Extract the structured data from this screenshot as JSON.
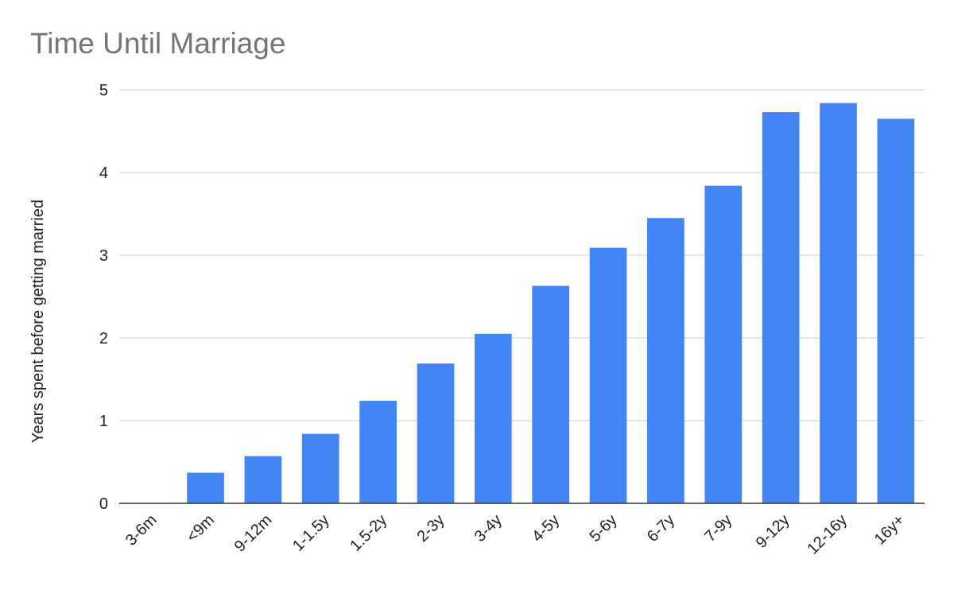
{
  "chart_data": {
    "type": "bar",
    "title": "Time Until Marriage",
    "xlabel": "",
    "ylabel": "Years spent before getting married",
    "ylim": [
      0,
      5
    ],
    "yticks": [
      0,
      1,
      2,
      3,
      4,
      5
    ],
    "grid": true,
    "legend": "none",
    "bar_color": "#4285f4",
    "categories": [
      "3-6m",
      "<9m",
      "9-12m",
      "1-1.5y",
      "1.5-2y",
      "2-3y",
      "3-4y",
      "4-5y",
      "5-6y",
      "6-7y",
      "7-9y",
      "9-12y",
      "12-16y",
      "16y+"
    ],
    "values": [
      0,
      0.37,
      0.57,
      0.84,
      1.24,
      1.69,
      2.05,
      2.63,
      3.09,
      3.45,
      3.84,
      4.73,
      4.84,
      4.65
    ]
  }
}
